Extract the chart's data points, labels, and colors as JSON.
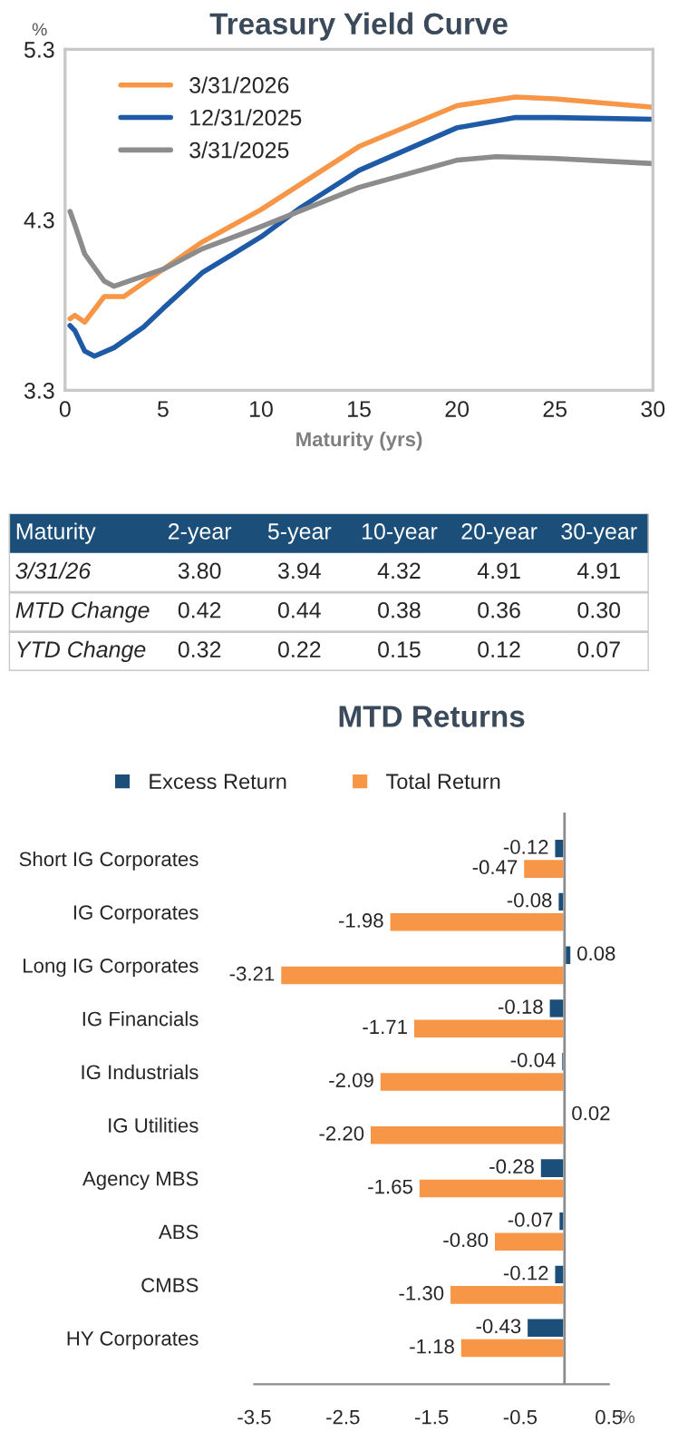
{
  "chart_data": [
    {
      "type": "line",
      "title": "Treasury Yield Curve",
      "xlabel": "Maturity (yrs)",
      "ylabel": "%",
      "xlim": [
        0,
        30
      ],
      "ylim": [
        3.3,
        5.3
      ],
      "xticks": [
        0,
        5,
        10,
        15,
        20,
        25,
        30
      ],
      "yticks": [
        3.3,
        4.3,
        5.3
      ],
      "grid": false,
      "legend": "top left",
      "marker": "none",
      "line_style": "solid",
      "series": [
        {
          "name": "3/31/2026",
          "color": "#f79646",
          "x": [
            0.25,
            0.5,
            1,
            2,
            3,
            5,
            7,
            10,
            15,
            20,
            23,
            25,
            30
          ],
          "values": [
            3.72,
            3.74,
            3.7,
            3.85,
            3.85,
            4.01,
            4.17,
            4.36,
            4.73,
            4.97,
            5.02,
            5.01,
            4.96
          ]
        },
        {
          "name": "12/31/2025",
          "color": "#1f5aa6",
          "x": [
            0.25,
            0.5,
            1,
            1.5,
            2.5,
            4,
            5,
            7,
            10,
            12,
            15,
            20,
            23,
            25,
            30
          ],
          "values": [
            3.68,
            3.65,
            3.53,
            3.5,
            3.55,
            3.67,
            3.78,
            3.99,
            4.2,
            4.37,
            4.59,
            4.84,
            4.9,
            4.9,
            4.89
          ]
        },
        {
          "name": "3/31/2025",
          "color": "#8c8c8c",
          "x": [
            0.25,
            0.5,
            1,
            2,
            2.5,
            5,
            7,
            10,
            15,
            20,
            22,
            25,
            30
          ],
          "values": [
            4.35,
            4.27,
            4.1,
            3.94,
            3.91,
            4.01,
            4.13,
            4.26,
            4.49,
            4.65,
            4.67,
            4.66,
            4.63
          ]
        }
      ]
    },
    {
      "type": "other",
      "categories": [
        "Maturity",
        "2-year",
        "5-year",
        "10-year",
        "20-year",
        "30-year"
      ],
      "y_categories": [
        "3/31/26",
        "MTD Change",
        "YTD Change"
      ],
      "cell_labels": [
        [
          "3.80",
          "3.94",
          "4.32",
          "4.91",
          "4.91"
        ],
        [
          "0.42",
          "0.44",
          "0.38",
          "0.36",
          "0.30"
        ],
        [
          "0.32",
          "0.22",
          "0.15",
          "0.12",
          "0.07"
        ]
      ]
    },
    {
      "type": "bar",
      "title": "MTD Returns",
      "orientation": "horizontal",
      "xlabel": "%",
      "xlim": [
        -3.5,
        0.5
      ],
      "xticks": [
        -3.5,
        -2.5,
        -1.5,
        -0.5,
        0.5
      ],
      "legend": "top",
      "grid": false,
      "categories": [
        "Short IG Corporates",
        "IG Corporates",
        "Long IG Corporates",
        "IG Financials",
        "IG Industrials",
        "IG Utilities",
        "Agency MBS",
        "ABS",
        "CMBS",
        "HY Corporates"
      ],
      "series": [
        {
          "name": "Excess Return",
          "color": "#1b4f7a",
          "values": [
            -0.12,
            -0.08,
            0.08,
            -0.18,
            -0.04,
            0.02,
            -0.28,
            -0.07,
            -0.12,
            -0.43
          ],
          "value_labels": [
            "-0.12",
            "-0.08",
            "0.08",
            "-0.18",
            "-0.04",
            "0.02",
            "-0.28",
            "-0.07",
            "-0.12",
            "-0.43"
          ]
        },
        {
          "name": "Total Return",
          "color": "#f79646",
          "values": [
            -0.47,
            -1.98,
            -3.21,
            -1.71,
            -2.09,
            -2.2,
            -1.65,
            -0.8,
            -1.3,
            -1.18
          ],
          "value_labels": [
            "-0.47",
            "-1.98",
            "-3.21",
            "-1.71",
            "-2.09",
            "-2.20",
            "-1.65",
            "-0.80",
            "-1.30",
            "-1.18"
          ]
        }
      ]
    }
  ]
}
